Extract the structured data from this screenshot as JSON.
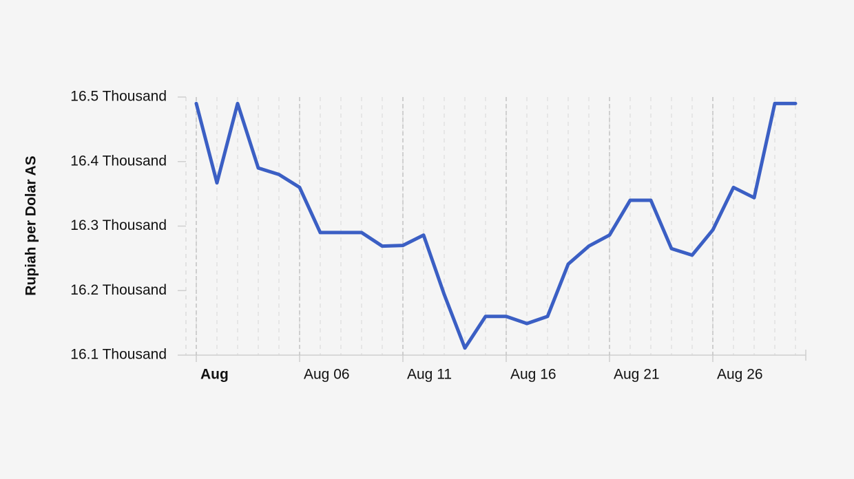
{
  "chart_data": {
    "type": "line",
    "y_label": "Rupiah per Dolar AS",
    "x": [
      1,
      2,
      3,
      4,
      5,
      6,
      7,
      8,
      9,
      10,
      11,
      12,
      13,
      14,
      15,
      16,
      17,
      18,
      19,
      20,
      21,
      22,
      23,
      24,
      25,
      26,
      27,
      28,
      29,
      30
    ],
    "series": [
      {
        "name": "Rupiah per Dolar AS",
        "color": "#3b5fc4",
        "values": [
          16490,
          16367,
          16490,
          16390,
          16380,
          16360,
          16290,
          16290,
          16290,
          16269,
          16270,
          16286,
          16194,
          16111,
          16160,
          16160,
          16149,
          16160,
          16241,
          16269,
          16286,
          16340,
          16340,
          16265,
          16255,
          16294,
          16360,
          16344,
          16490,
          16490
        ]
      }
    ],
    "xlim": [
      0.5,
      30.5
    ],
    "xticks": [
      {
        "value": 1,
        "label": "Aug"
      },
      {
        "value": 6,
        "label": "Aug 06"
      },
      {
        "value": 11,
        "label": "Aug 11"
      },
      {
        "value": 16,
        "label": "Aug 16"
      },
      {
        "value": 21,
        "label": "Aug 21"
      },
      {
        "value": 26,
        "label": "Aug 26"
      }
    ],
    "ylim": [
      16100,
      16500
    ],
    "yticks": [
      {
        "value": 16100,
        "label": "16.1 Thousand"
      },
      {
        "value": 16200,
        "label": "16.2 Thousand"
      },
      {
        "value": 16300,
        "label": "16.3 Thousand"
      },
      {
        "value": 16400,
        "label": "16.4 Thousand"
      },
      {
        "value": 16500,
        "label": "16.5 Thousand"
      }
    ],
    "grid": true
  }
}
